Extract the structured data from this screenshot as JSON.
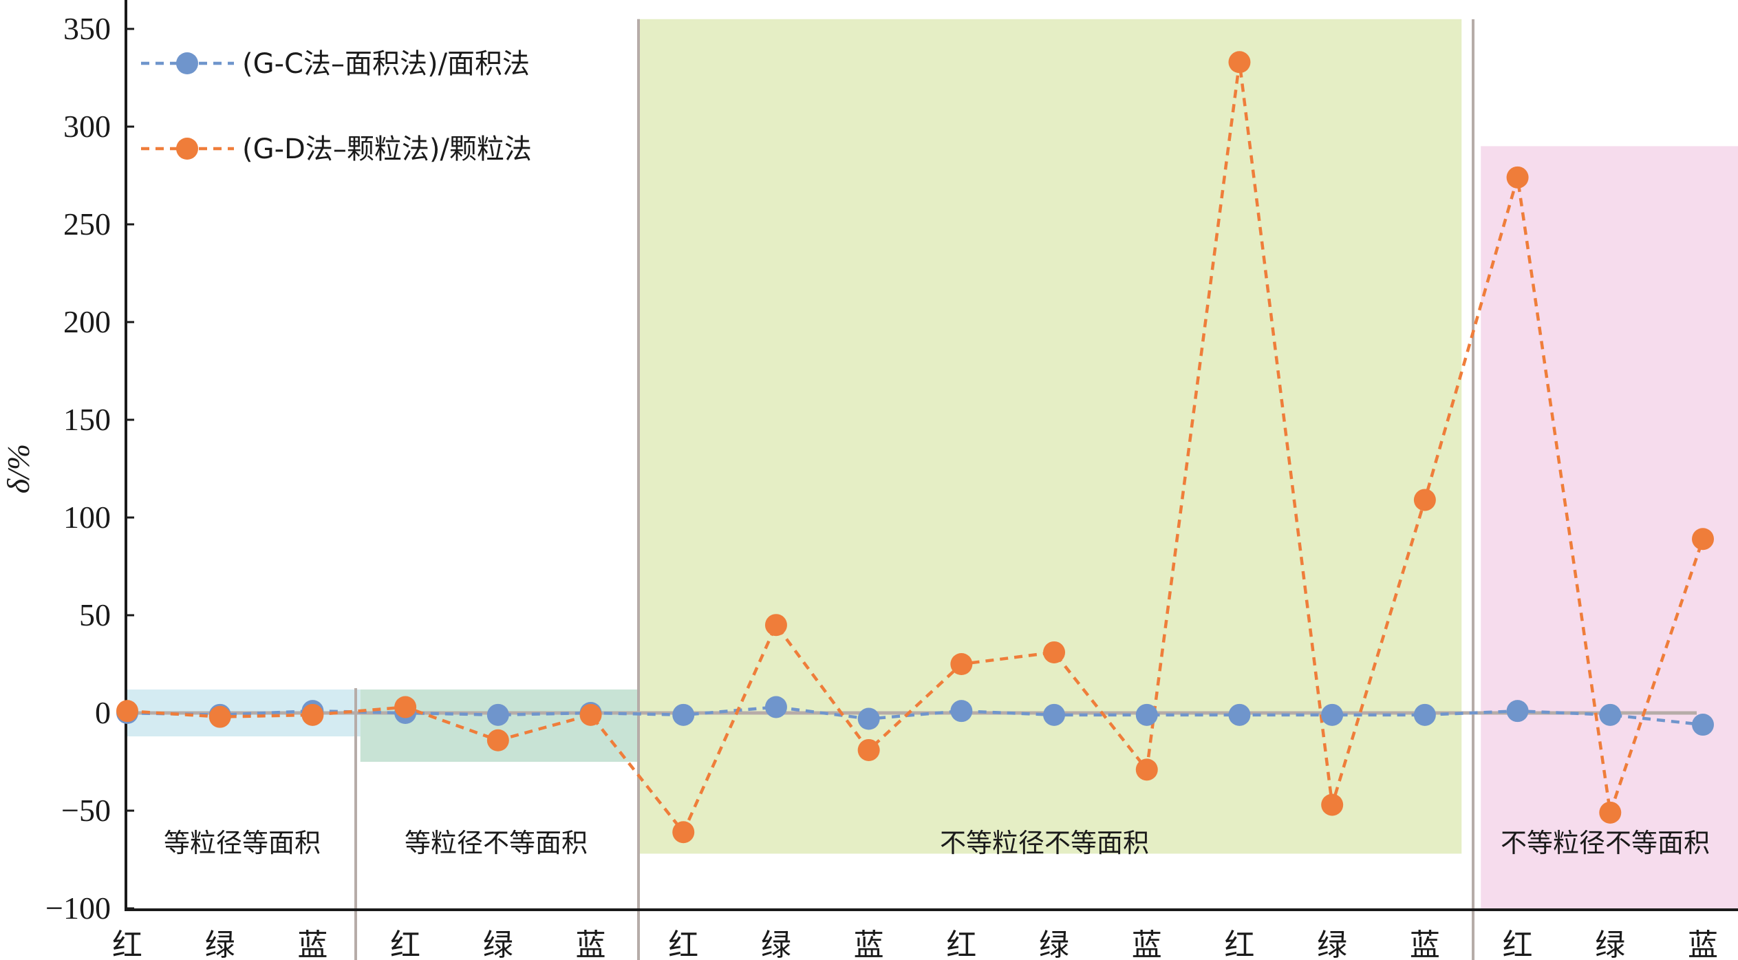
{
  "chart_data": {
    "type": "line",
    "ylabel": "δ/%",
    "ylim": [
      -100,
      350
    ],
    "yticks": [
      -100,
      -50,
      0,
      50,
      100,
      150,
      200,
      250,
      300,
      350
    ],
    "categories": [
      "红",
      "绿",
      "蓝",
      "红",
      "绿",
      "蓝",
      "红",
      "绿",
      "蓝",
      "红",
      "绿",
      "蓝",
      "红",
      "绿",
      "蓝",
      "红",
      "绿",
      "蓝"
    ],
    "series": [
      {
        "name": "(G-C法–面积法)/面积法",
        "color": "#6f95cc",
        "values": [
          0,
          -1,
          1,
          0,
          -1,
          0,
          -1,
          3,
          -3,
          1,
          -1,
          -1,
          -1,
          -1,
          -1,
          1,
          -1,
          -6
        ]
      },
      {
        "name": "(G-D法–颗粒法)/颗粒法",
        "color": "#ef7d3a",
        "values": [
          1,
          -2,
          -1,
          3,
          -14,
          -1,
          -61,
          45,
          -19,
          25,
          31,
          -29,
          333,
          -47,
          109,
          274,
          -51,
          89
        ]
      }
    ],
    "regions": [
      {
        "label": "等粒径等面积",
        "color": "#d4ebf2",
        "start_index": 0,
        "end_index": 2,
        "y_range": [
          -12,
          12
        ]
      },
      {
        "label": "等粒径不等面积",
        "color": "#c8e3d5",
        "start_index": 3,
        "end_index": 5,
        "y_range": [
          -25,
          12
        ]
      },
      {
        "label": "不等粒径不等面积",
        "color": "#e5eec5",
        "start_index": 6,
        "end_index": 14,
        "y_range": [
          -72,
          355
        ]
      },
      {
        "label": "不等粒径不等面积",
        "color": "#f6dced",
        "start_index": 15,
        "end_index": 17,
        "y_range": [
          -100,
          290
        ]
      }
    ],
    "legend_position": "top-left",
    "grid": false,
    "zero_line": true
  }
}
